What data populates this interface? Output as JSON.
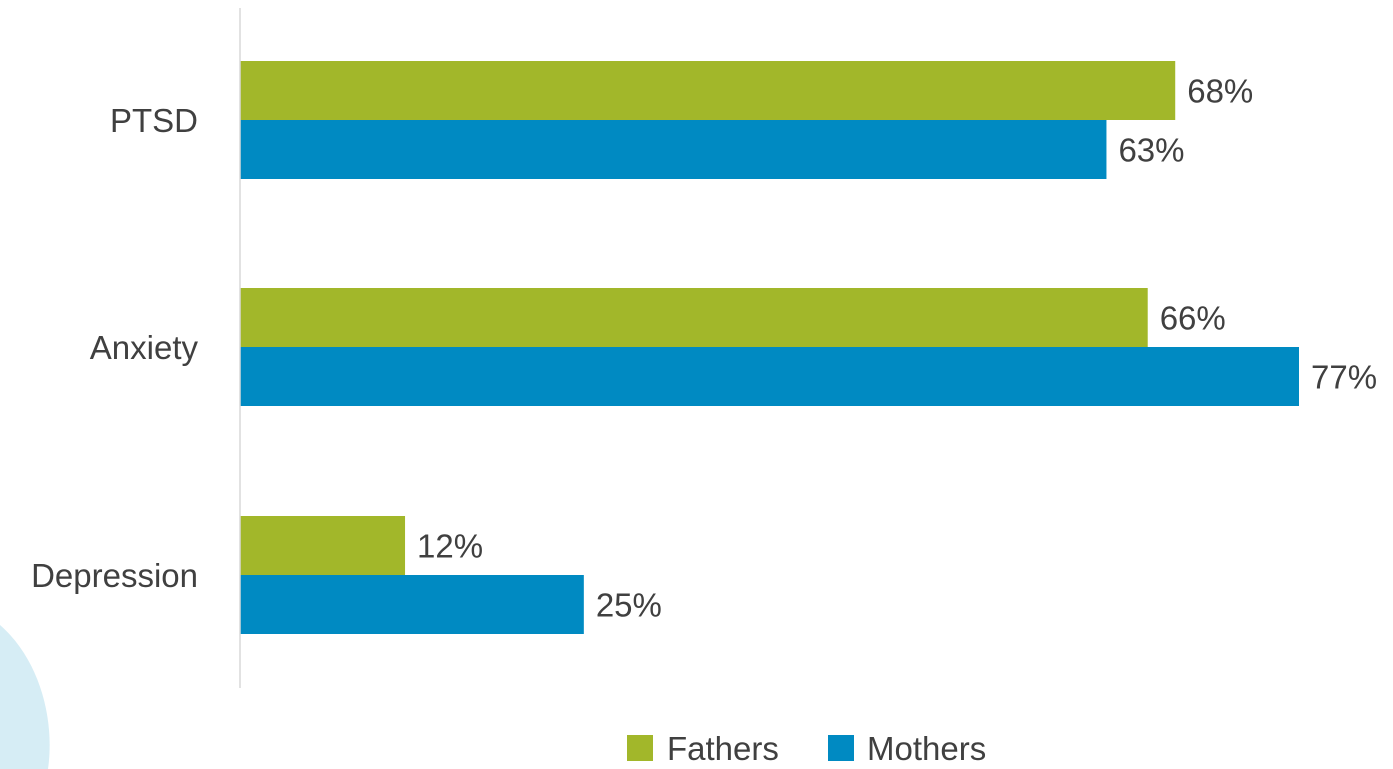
{
  "chart_data": {
    "type": "bar",
    "orientation": "horizontal",
    "categories": [
      "PTSD",
      "Anxiety",
      "Depression"
    ],
    "series": [
      {
        "name": "Fathers",
        "values": [
          68,
          66,
          12
        ],
        "color": "#a2b72a"
      },
      {
        "name": "Mothers",
        "values": [
          63,
          77,
          25
        ],
        "color": "#008ac2"
      }
    ],
    "value_suffix": "%",
    "xlim": [
      0,
      100
    ],
    "grid": false,
    "legend": "bottom-center",
    "data_labels": true
  },
  "decoration": {
    "bg_shape_color": "#d6edf5"
  }
}
